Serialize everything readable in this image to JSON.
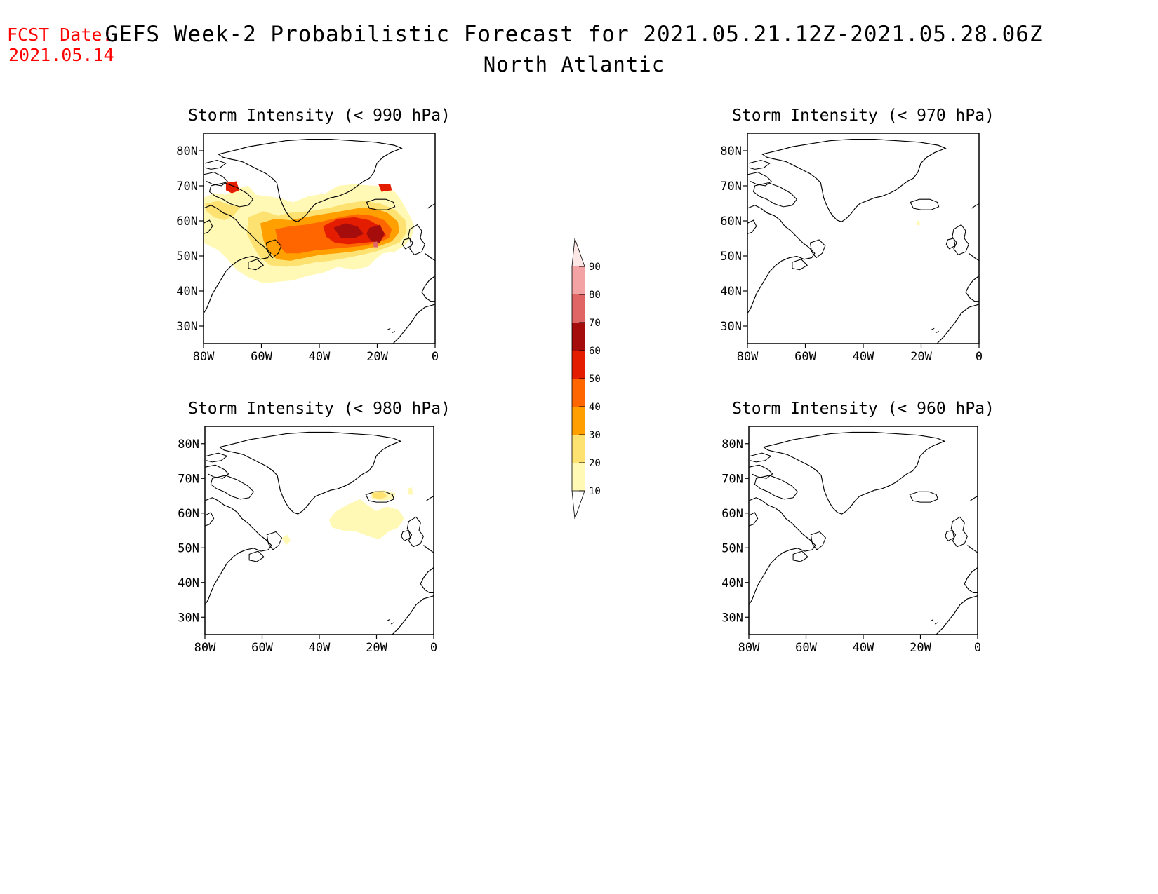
{
  "header": {
    "fcst_label": "FCST Date:",
    "fcst_date": "2021.05.14",
    "title": "GEFS Week-2 Probabilistic Forecast for 2021.05.21.12Z-2021.05.28.06Z",
    "subtitle": "North Atlantic",
    "fcst_color": "#ff0000"
  },
  "axes": {
    "lat_ticks": [
      "80N",
      "70N",
      "60N",
      "50N",
      "40N",
      "30N"
    ],
    "lon_ticks": [
      "80W",
      "60W",
      "40W",
      "20W",
      "0"
    ]
  },
  "panels": [
    {
      "title": "Storm Intensity (< 990 hPa)",
      "id": "p990"
    },
    {
      "title": "Storm Intensity (< 970 hPa)",
      "id": "p970"
    },
    {
      "title": "Storm Intensity (< 980 hPa)",
      "id": "p980"
    },
    {
      "title": "Storm Intensity (< 960 hPa)",
      "id": "p960"
    }
  ],
  "colorbar": {
    "labels": [
      "90",
      "80",
      "70",
      "60",
      "50",
      "40",
      "30",
      "20",
      "10"
    ],
    "colors": [
      "#fde6e6",
      "#f3a3a3",
      "#e06666",
      "#a50d0d",
      "#e51d00",
      "#ff6600",
      "#ff9f00",
      "#fde272",
      "#fff9b5"
    ]
  },
  "chart_data": {
    "type": "heatmap",
    "bins": [
      10,
      20,
      30,
      40,
      50,
      60,
      70,
      80,
      90
    ],
    "lon_range": [
      -80,
      0
    ],
    "lat_range": [
      25,
      85
    ]
  }
}
